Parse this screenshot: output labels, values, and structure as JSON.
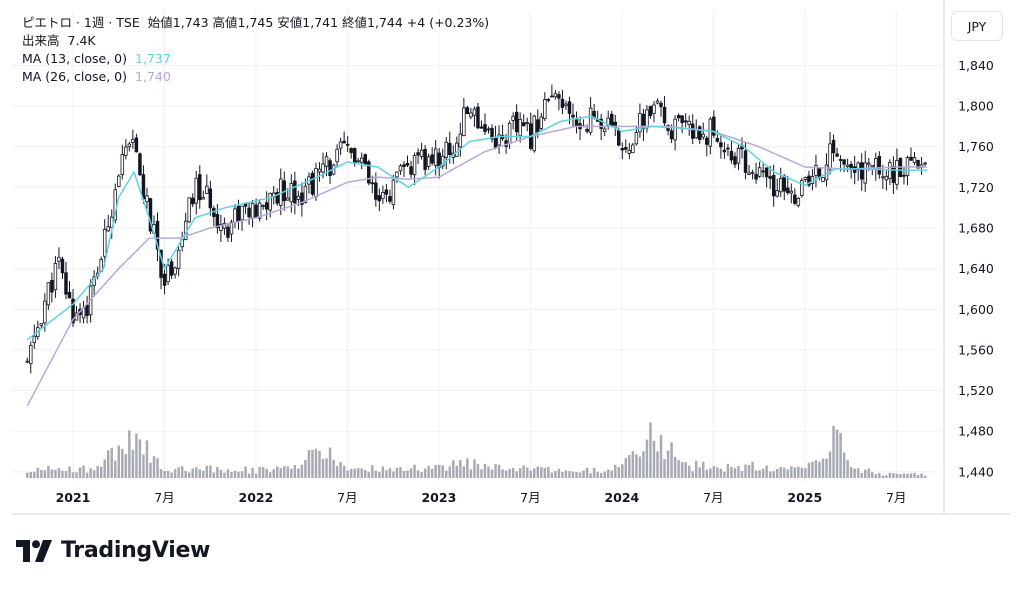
{
  "legend": {
    "symbol": "ピエトロ · 1週 · TSE",
    "ohlc": "始値1,743  高値1,745  安値1,741  終値1,744  +4 (+0.23%)",
    "volume_label": "出来高",
    "volume_value": "7.4K",
    "ma13_label": "MA (13, close, 0)",
    "ma13_value": "1,737",
    "ma26_label": "MA (26, close, 0)",
    "ma26_value": "1,740"
  },
  "currency_button": "JPY",
  "brand": {
    "name": "TradingView",
    "logo_icon": "tradingview-logo-icon"
  },
  "colors": {
    "candle": "#131722",
    "ma13": "#5fd3e2",
    "ma26": "#b9a7d8",
    "volume": "#a8aab3",
    "grid": "#eef0f4"
  },
  "chart_data": {
    "type": "candlestick",
    "interval": "1週",
    "currency": "JPY",
    "y_ticks": [
      "1,440",
      "1,480",
      "1,520",
      "1,560",
      "1,600",
      "1,640",
      "1,680",
      "1,720",
      "1,760",
      "1,800",
      "1,840"
    ],
    "x_ticks": [
      {
        "label": "2021",
        "date": "2021-01"
      },
      {
        "label": "7月",
        "date": "2021-07"
      },
      {
        "label": "2022",
        "date": "2022-01"
      },
      {
        "label": "7月",
        "date": "2022-07"
      },
      {
        "label": "2023",
        "date": "2023-01"
      },
      {
        "label": "7月",
        "date": "2023-07"
      },
      {
        "label": "2024",
        "date": "2024-01"
      },
      {
        "label": "7月",
        "date": "2024-07"
      },
      {
        "label": "2025",
        "date": "2025-01"
      },
      {
        "label": "7月",
        "date": "2025-07"
      }
    ],
    "ylim": [
      1430,
      1865
    ],
    "xlim": [
      "2020-09",
      "2025-10"
    ],
    "grid": true,
    "series": [
      {
        "name": "MA (13, close, 0)",
        "kind": "line",
        "color": "#5fd3e2"
      },
      {
        "name": "MA (26, close, 0)",
        "kind": "line",
        "color": "#b9a7d8"
      },
      {
        "name": "出来高",
        "kind": "volume-bars",
        "color": "#a8aab3"
      }
    ],
    "price_path": [
      [
        "2020-10",
        1545
      ],
      [
        "2020-11",
        1600
      ],
      [
        "2020-12",
        1645
      ],
      [
        "2021-01",
        1595
      ],
      [
        "2021-02",
        1605
      ],
      [
        "2021-03",
        1660
      ],
      [
        "2021-04",
        1740
      ],
      [
        "2021-05",
        1760
      ],
      [
        "2021-06",
        1690
      ],
      [
        "2021-07",
        1630
      ],
      [
        "2021-08",
        1660
      ],
      [
        "2021-09",
        1720
      ],
      [
        "2021-10",
        1705
      ],
      [
        "2021-11",
        1680
      ],
      [
        "2021-12",
        1700
      ],
      [
        "2022-01",
        1690
      ],
      [
        "2022-02",
        1710
      ],
      [
        "2022-03",
        1720
      ],
      [
        "2022-04",
        1715
      ],
      [
        "2022-05",
        1730
      ],
      [
        "2022-06",
        1745
      ],
      [
        "2022-07",
        1758
      ],
      [
        "2022-08",
        1740
      ],
      [
        "2022-09",
        1700
      ],
      [
        "2022-10",
        1720
      ],
      [
        "2022-11",
        1740
      ],
      [
        "2022-12",
        1745
      ],
      [
        "2023-01",
        1750
      ],
      [
        "2023-02",
        1760
      ],
      [
        "2023-03",
        1800
      ],
      [
        "2023-04",
        1780
      ],
      [
        "2023-05",
        1765
      ],
      [
        "2023-06",
        1780
      ],
      [
        "2023-07",
        1770
      ],
      [
        "2023-08",
        1805
      ],
      [
        "2023-09",
        1800
      ],
      [
        "2023-10",
        1780
      ],
      [
        "2023-11",
        1790
      ],
      [
        "2023-12",
        1780
      ],
      [
        "2024-01",
        1760
      ],
      [
        "2024-02",
        1775
      ],
      [
        "2024-03",
        1800
      ],
      [
        "2024-04",
        1780
      ],
      [
        "2024-05",
        1775
      ],
      [
        "2024-06",
        1775
      ],
      [
        "2024-07",
        1775
      ],
      [
        "2024-08",
        1755
      ],
      [
        "2024-09",
        1745
      ],
      [
        "2024-10",
        1730
      ],
      [
        "2024-11",
        1720
      ],
      [
        "2024-12",
        1712
      ],
      [
        "2025-01",
        1720
      ],
      [
        "2025-02",
        1735
      ],
      [
        "2025-03",
        1760
      ],
      [
        "2025-04",
        1730
      ],
      [
        "2025-05",
        1740
      ],
      [
        "2025-06",
        1738
      ],
      [
        "2025-07",
        1735
      ],
      [
        "2025-08",
        1738
      ],
      [
        "2025-09",
        1744
      ]
    ],
    "ma13_path": [
      [
        "2020-10",
        1570
      ],
      [
        "2021-01",
        1605
      ],
      [
        "2021-03",
        1640
      ],
      [
        "2021-04",
        1710
      ],
      [
        "2021-05",
        1735
      ],
      [
        "2021-06",
        1690
      ],
      [
        "2021-07",
        1640
      ],
      [
        "2021-09",
        1690
      ],
      [
        "2021-11",
        1700
      ],
      [
        "2022-02",
        1710
      ],
      [
        "2022-05",
        1730
      ],
      [
        "2022-07",
        1745
      ],
      [
        "2022-09",
        1740
      ],
      [
        "2022-11",
        1720
      ],
      [
        "2023-01",
        1740
      ],
      [
        "2023-03",
        1765
      ],
      [
        "2023-05",
        1770
      ],
      [
        "2023-07",
        1770
      ],
      [
        "2023-09",
        1785
      ],
      [
        "2023-11",
        1790
      ],
      [
        "2024-01",
        1775
      ],
      [
        "2024-03",
        1780
      ],
      [
        "2024-05",
        1778
      ],
      [
        "2024-07",
        1775
      ],
      [
        "2024-09",
        1760
      ],
      [
        "2024-11",
        1735
      ],
      [
        "2025-01",
        1722
      ],
      [
        "2025-03",
        1738
      ],
      [
        "2025-05",
        1738
      ],
      [
        "2025-07",
        1737
      ],
      [
        "2025-09",
        1737
      ]
    ],
    "ma26_path": [
      [
        "2020-10",
        1505
      ],
      [
        "2021-01",
        1590
      ],
      [
        "2021-04",
        1640
      ],
      [
        "2021-06",
        1670
      ],
      [
        "2021-08",
        1670
      ],
      [
        "2021-10",
        1680
      ],
      [
        "2022-01",
        1690
      ],
      [
        "2022-04",
        1705
      ],
      [
        "2022-07",
        1725
      ],
      [
        "2022-09",
        1730
      ],
      [
        "2022-11",
        1728
      ],
      [
        "2023-01",
        1730
      ],
      [
        "2023-04",
        1755
      ],
      [
        "2023-07",
        1770
      ],
      [
        "2023-10",
        1780
      ],
      [
        "2024-01",
        1780
      ],
      [
        "2024-04",
        1780
      ],
      [
        "2024-07",
        1775
      ],
      [
        "2024-10",
        1760
      ],
      [
        "2025-01",
        1740
      ],
      [
        "2025-04",
        1738
      ],
      [
        "2025-07",
        1740
      ],
      [
        "2025-09",
        1740
      ]
    ],
    "volume_profile": [
      [
        "2020-10",
        0.08
      ],
      [
        "2020-12",
        0.12
      ],
      [
        "2021-02",
        0.1
      ],
      [
        "2021-04",
        0.35
      ],
      [
        "2021-05",
        0.45
      ],
      [
        "2021-06",
        0.3
      ],
      [
        "2021-07",
        0.1
      ],
      [
        "2021-10",
        0.12
      ],
      [
        "2022-01",
        0.09
      ],
      [
        "2022-04",
        0.12
      ],
      [
        "2022-05",
        0.35
      ],
      [
        "2022-07",
        0.12
      ],
      [
        "2022-10",
        0.1
      ],
      [
        "2023-01",
        0.12
      ],
      [
        "2023-03",
        0.18
      ],
      [
        "2023-07",
        0.1
      ],
      [
        "2023-10",
        0.08
      ],
      [
        "2024-01",
        0.12
      ],
      [
        "2024-02",
        0.3
      ],
      [
        "2024-03",
        0.55
      ],
      [
        "2024-05",
        0.15
      ],
      [
        "2024-08",
        0.12
      ],
      [
        "2024-10",
        0.14
      ],
      [
        "2025-01",
        0.1
      ],
      [
        "2025-03",
        0.5
      ],
      [
        "2025-04",
        0.12
      ],
      [
        "2025-06",
        0.05
      ],
      [
        "2025-09",
        0.05
      ]
    ],
    "last": {
      "open": 1743,
      "high": 1745,
      "low": 1741,
      "close": 1744,
      "change": 4,
      "change_pct": 0.23,
      "volume": "7.4K"
    }
  }
}
